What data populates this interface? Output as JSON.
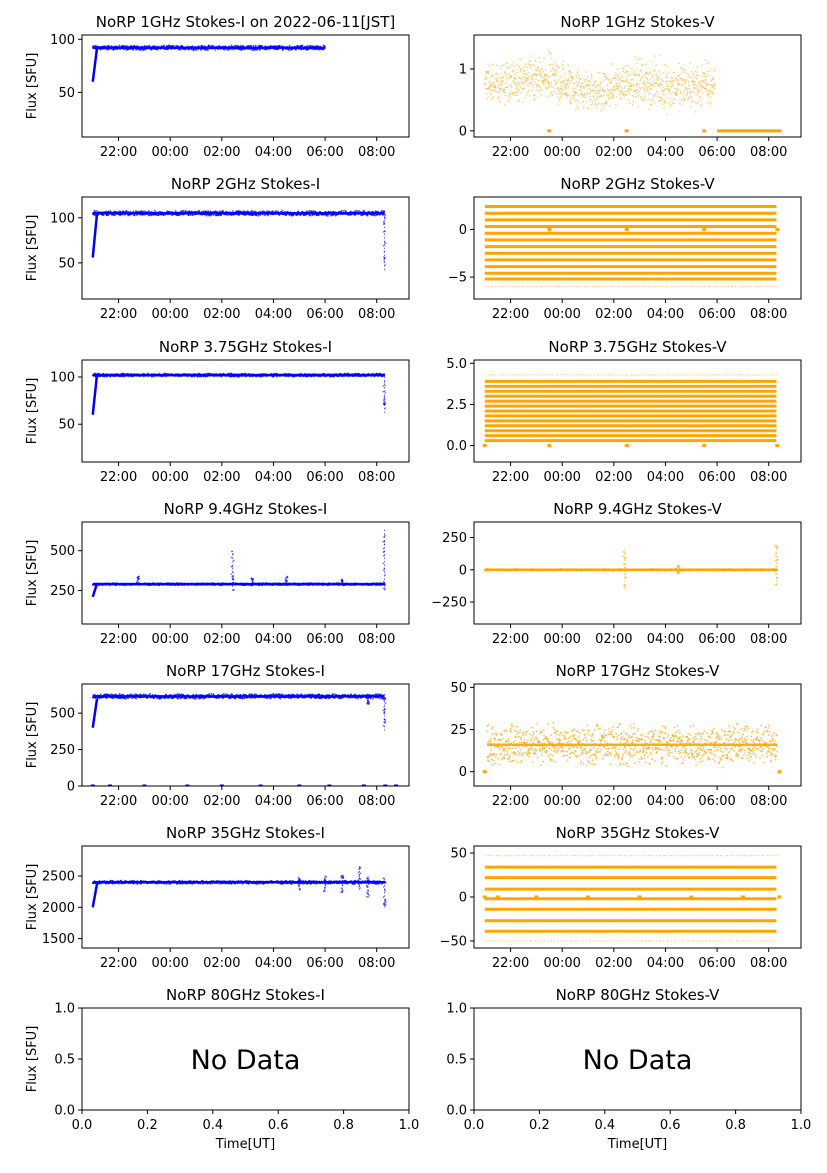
{
  "figure": {
    "colors": {
      "stokes_i": "#0000ff",
      "stokes_v": "#ffa500",
      "axes": "#000000"
    },
    "time_ticks": [
      "22:00",
      "00:00",
      "02:00",
      "04:00",
      "06:00",
      "08:00"
    ]
  },
  "chart_data": [
    {
      "id": "p1i",
      "type": "scatter",
      "title": "NoRP 1GHz Stokes-I on 2022-06-11[JST]",
      "xlabel": "",
      "ylabel": "Flux [SFU]",
      "color": "stokes_i",
      "xlim": [
        "20:35",
        "09:15"
      ],
      "ylim": [
        8,
        104
      ],
      "yticks": [
        {
          "v": 50,
          "label": "50"
        },
        {
          "v": 100,
          "label": "100"
        }
      ],
      "series": [
        {
          "start": "21:00",
          "end": "06:00",
          "level": 92,
          "band": 2.5,
          "rise": [
            {
              "t": "21:00",
              "v": 60
            },
            {
              "t": "21:10",
              "v": 92
            }
          ],
          "spikes": [],
          "gaps": [],
          "zero_marks": []
        }
      ]
    },
    {
      "id": "p1v",
      "type": "scatter",
      "title": "NoRP 1GHz Stokes-V",
      "xlabel": "",
      "ylabel": "",
      "color": "stokes_v",
      "xlim": [
        "20:35",
        "09:15"
      ],
      "ylim": [
        -0.1,
        1.55
      ],
      "yticks": [
        {
          "v": 0,
          "label": "0"
        },
        {
          "v": 1,
          "label": "1"
        }
      ],
      "series": [
        {
          "start": "21:00",
          "end": "05:55",
          "level": 0.75,
          "band": 0.35,
          "envelope": [
            {
              "t": "21:00",
              "min": 0.3,
              "max": 1.2
            },
            {
              "t": "23:30",
              "min": 0.25,
              "max": 1.4
            },
            {
              "t": "01:30",
              "min": 0.15,
              "max": 1.05
            },
            {
              "t": "02:30",
              "min": 0.3,
              "max": 1.3
            },
            {
              "t": "04:30",
              "min": 0.15,
              "max": 1.25
            },
            {
              "t": "05:55",
              "min": 0.2,
              "max": 1.3
            }
          ],
          "flat": [
            {
              "from": "06:00",
              "to": "08:30",
              "v": 0
            }
          ],
          "zero_marks": [
            "23:30",
            "02:30",
            "05:30"
          ]
        }
      ]
    },
    {
      "id": "p2i",
      "type": "scatter",
      "title": "NoRP 2GHz Stokes-I",
      "xlabel": "",
      "ylabel": "Flux [SFU]",
      "color": "stokes_i",
      "xlim": [
        "20:35",
        "09:15"
      ],
      "ylim": [
        10,
        123
      ],
      "yticks": [
        {
          "v": 50,
          "label": "50"
        },
        {
          "v": 100,
          "label": "100"
        }
      ],
      "series": [
        {
          "start": "21:00",
          "end": "08:18",
          "level": 105,
          "band": 3,
          "rise": [
            {
              "t": "21:00",
              "v": 56
            },
            {
              "t": "21:10",
              "v": 105
            }
          ],
          "spikes": [
            {
              "t": "08:18",
              "min": 42,
              "max": 105
            }
          ],
          "zero_marks": []
        }
      ]
    },
    {
      "id": "p2v",
      "type": "scatter",
      "title": "NoRP 2GHz Stokes-V",
      "xlabel": "",
      "ylabel": "",
      "color": "stokes_v",
      "xlim": [
        "20:35",
        "09:15"
      ],
      "ylim": [
        -7.3,
        3.4
      ],
      "yticks": [
        {
          "v": -5,
          "label": "−5"
        },
        {
          "v": 0,
          "label": "0"
        }
      ],
      "series": [
        {
          "start": "21:00",
          "end": "08:18",
          "levels": [
            2.4,
            1.7,
            1.0,
            0.3,
            -0.4,
            -1.1,
            -1.8,
            -2.5,
            -3.2,
            -3.9,
            -4.6,
            -5.2
          ],
          "sparse_levels": [
            -6.0
          ],
          "zero_marks": [
            "23:30",
            "02:30",
            "05:30",
            "08:20"
          ]
        }
      ]
    },
    {
      "id": "p3i",
      "type": "scatter",
      "title": "NoRP 3.75GHz Stokes-I",
      "xlabel": "",
      "ylabel": "Flux [SFU]",
      "color": "stokes_i",
      "xlim": [
        "20:35",
        "09:15"
      ],
      "ylim": [
        10,
        118
      ],
      "yticks": [
        {
          "v": 50,
          "label": "50"
        },
        {
          "v": 100,
          "label": "100"
        }
      ],
      "series": [
        {
          "start": "21:00",
          "end": "08:18",
          "level": 102,
          "band": 2,
          "rise": [
            {
              "t": "21:00",
              "v": 60
            },
            {
              "t": "21:10",
              "v": 103
            }
          ],
          "spikes": [
            {
              "t": "08:18",
              "min": 62,
              "max": 104
            }
          ],
          "zero_marks": []
        }
      ]
    },
    {
      "id": "p3v",
      "type": "scatter",
      "title": "NoRP 3.75GHz Stokes-V",
      "xlabel": "",
      "ylabel": "",
      "color": "stokes_v",
      "xlim": [
        "20:35",
        "09:15"
      ],
      "ylim": [
        -1.0,
        5.2
      ],
      "yticks": [
        {
          "v": 0,
          "label": "0.0"
        },
        {
          "v": 2.5,
          "label": "2.5"
        },
        {
          "v": 5,
          "label": "5.0"
        }
      ],
      "series": [
        {
          "start": "21:00",
          "end": "08:18",
          "levels": [
            0.3,
            0.6,
            0.9,
            1.2,
            1.5,
            1.8,
            2.1,
            2.4,
            2.7,
            3.0,
            3.3,
            3.6,
            3.9
          ],
          "sparse_levels": [
            4.3
          ],
          "zero_marks": [
            "21:00",
            "23:30",
            "02:30",
            "05:30",
            "08:20"
          ]
        }
      ]
    },
    {
      "id": "p4i",
      "type": "scatter",
      "title": "NoRP 9.4GHz Stokes-I",
      "xlabel": "",
      "ylabel": "Flux [SFU]",
      "color": "stokes_i",
      "xlim": [
        "20:35",
        "09:15"
      ],
      "ylim": [
        40,
        680
      ],
      "yticks": [
        {
          "v": 250,
          "label": "250"
        },
        {
          "v": 500,
          "label": "500"
        }
      ],
      "series": [
        {
          "start": "21:00",
          "end": "08:18",
          "level": 290,
          "band": 8,
          "rise": [
            {
              "t": "21:00",
              "v": 210
            },
            {
              "t": "21:10",
              "v": 295
            }
          ],
          "spikes": [
            {
              "t": "22:45",
              "min": 280,
              "max": 340
            },
            {
              "t": "02:25",
              "min": 250,
              "max": 500
            },
            {
              "t": "03:10",
              "min": 280,
              "max": 330
            },
            {
              "t": "04:30",
              "min": 280,
              "max": 350
            },
            {
              "t": "06:40",
              "min": 280,
              "max": 320
            },
            {
              "t": "08:18",
              "min": 250,
              "max": 640
            }
          ],
          "zero_marks": []
        }
      ]
    },
    {
      "id": "p4v",
      "type": "scatter",
      "title": "NoRP 9.4GHz Stokes-V",
      "xlabel": "",
      "ylabel": "",
      "color": "stokes_v",
      "xlim": [
        "20:35",
        "09:15"
      ],
      "ylim": [
        -420,
        370
      ],
      "yticks": [
        {
          "v": -250,
          "label": "−250"
        },
        {
          "v": 0,
          "label": "0"
        },
        {
          "v": 250,
          "label": "250"
        }
      ],
      "series": [
        {
          "start": "21:00",
          "end": "08:20",
          "level": 0,
          "band": 8,
          "spikes": [
            {
              "t": "02:25",
              "min": -150,
              "max": 160
            },
            {
              "t": "04:30",
              "min": -30,
              "max": 40
            },
            {
              "t": "08:18",
              "min": -120,
              "max": 190
            }
          ],
          "zero_marks": []
        }
      ]
    },
    {
      "id": "p5i",
      "type": "scatter",
      "title": "NoRP 17GHz Stokes-I",
      "xlabel": "",
      "ylabel": "Flux [SFU]",
      "color": "stokes_i",
      "xlim": [
        "20:35",
        "09:15"
      ],
      "ylim": [
        0,
        700
      ],
      "yticks": [
        {
          "v": 0,
          "label": "0"
        },
        {
          "v": 250,
          "label": "250"
        },
        {
          "v": 500,
          "label": "500"
        }
      ],
      "series": [
        {
          "start": "21:00",
          "end": "08:18",
          "level": 615,
          "band": 18,
          "rise": [
            {
              "t": "21:00",
              "v": 400
            },
            {
              "t": "21:10",
              "v": 600
            }
          ],
          "spikes": [
            {
              "t": "07:40",
              "min": 560,
              "max": 620
            },
            {
              "t": "08:18",
              "min": 380,
              "max": 620
            }
          ],
          "zero_marks": [
            "21:00",
            "21:40",
            "23:00",
            "00:40",
            "02:00",
            "03:30",
            "05:00",
            "06:10",
            "07:30",
            "08:20",
            "08:45"
          ]
        }
      ]
    },
    {
      "id": "p5v",
      "type": "scatter",
      "title": "NoRP 17GHz Stokes-V",
      "xlabel": "",
      "ylabel": "",
      "color": "stokes_v",
      "xlim": [
        "20:35",
        "09:15"
      ],
      "ylim": [
        -8.5,
        52
      ],
      "yticks": [
        {
          "v": 0,
          "label": "0"
        },
        {
          "v": 25,
          "label": "25"
        },
        {
          "v": 50,
          "label": "50"
        }
      ],
      "series": [
        {
          "start": "21:05",
          "end": "08:20",
          "level": 16,
          "band": 14,
          "spikes": [],
          "zero_marks": [
            "21:00",
            "08:25"
          ]
        }
      ]
    },
    {
      "id": "p6i",
      "type": "scatter",
      "title": "NoRP 35GHz Stokes-I",
      "xlabel": "",
      "ylabel": "Flux [SFU]",
      "color": "stokes_i",
      "xlim": [
        "20:35",
        "09:15"
      ],
      "ylim": [
        1350,
        2980
      ],
      "yticks": [
        {
          "v": 1500,
          "label": "1500"
        },
        {
          "v": 2000,
          "label": "2000"
        },
        {
          "v": 2500,
          "label": "2500"
        }
      ],
      "series": [
        {
          "start": "21:00",
          "end": "08:18",
          "level": 2400,
          "band": 30,
          "rise": [
            {
              "t": "21:00",
              "v": 2000
            },
            {
              "t": "21:10",
              "v": 2380
            }
          ],
          "spikes": [
            {
              "t": "05:00",
              "min": 2280,
              "max": 2480
            },
            {
              "t": "06:00",
              "min": 2250,
              "max": 2500
            },
            {
              "t": "06:40",
              "min": 2240,
              "max": 2520
            },
            {
              "t": "07:20",
              "min": 2280,
              "max": 2650
            },
            {
              "t": "07:40",
              "min": 2150,
              "max": 2500
            },
            {
              "t": "08:18",
              "min": 2000,
              "max": 2480
            }
          ],
          "zero_marks": []
        }
      ]
    },
    {
      "id": "p6v",
      "type": "scatter",
      "title": "NoRP 35GHz Stokes-V",
      "xlabel": "",
      "ylabel": "",
      "color": "stokes_v",
      "xlim": [
        "20:35",
        "09:15"
      ],
      "ylim": [
        -58,
        58
      ],
      "yticks": [
        {
          "v": -50,
          "label": "−50"
        },
        {
          "v": 0,
          "label": "0"
        },
        {
          "v": 50,
          "label": "50"
        }
      ],
      "series": [
        {
          "start": "21:00",
          "end": "08:18",
          "levels": [
            34,
            22,
            9,
            -2,
            -14,
            -27,
            -39
          ],
          "sparse_levels": [
            47,
            -50
          ],
          "zero_marks": [
            "21:00",
            "21:30",
            "23:00",
            "01:00",
            "03:00",
            "05:00",
            "07:00",
            "08:25"
          ]
        }
      ]
    },
    {
      "id": "p7i",
      "type": "empty",
      "title": "NoRP 80GHz Stokes-I",
      "xlabel": "Time[UT]",
      "ylabel": "Flux [SFU]",
      "message": "No Data",
      "xlim": [
        0,
        1
      ],
      "ylim": [
        0,
        1
      ],
      "xticks": [
        "0.0",
        "0.2",
        "0.4",
        "0.6",
        "0.8",
        "1.0"
      ],
      "yticks": [
        {
          "v": 0,
          "label": "0.0"
        },
        {
          "v": 0.5,
          "label": "0.5"
        },
        {
          "v": 1,
          "label": "1.0"
        }
      ]
    },
    {
      "id": "p7v",
      "type": "empty",
      "title": "NoRP 80GHz Stokes-V",
      "xlabel": "Time[UT]",
      "ylabel": "",
      "message": "No Data",
      "xlim": [
        0,
        1
      ],
      "ylim": [
        0,
        1
      ],
      "xticks": [
        "0.0",
        "0.2",
        "0.4",
        "0.6",
        "0.8",
        "1.0"
      ],
      "yticks": [
        {
          "v": 0,
          "label": "0.0"
        },
        {
          "v": 0.5,
          "label": "0.5"
        },
        {
          "v": 1,
          "label": "1.0"
        }
      ]
    }
  ]
}
